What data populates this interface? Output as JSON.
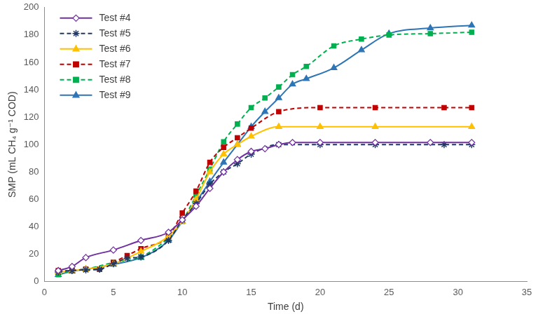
{
  "chart_data": {
    "type": "line",
    "x_label": "Time (d)",
    "y_label": "SMP (mL CH₄ g⁻¹ COD)",
    "xlim": [
      0,
      35
    ],
    "xticks": [
      0,
      5,
      10,
      15,
      20,
      25,
      30,
      35
    ],
    "ylim": [
      0,
      200
    ],
    "yticks": [
      0,
      20,
      40,
      60,
      80,
      100,
      120,
      140,
      160,
      180,
      200
    ],
    "grid": false,
    "legend": "upper left",
    "series": [
      {
        "name": "Test #4",
        "color": "#7030a0",
        "marker": "diamond_open",
        "line_style": "solid",
        "x": [
          1,
          2,
          3,
          5,
          7,
          9,
          10,
          11,
          12,
          13,
          14,
          15,
          16,
          17,
          18,
          20,
          24,
          28,
          31
        ],
        "values": [
          8,
          11,
          17.5,
          23,
          30,
          36,
          45,
          55,
          68,
          80,
          89,
          95,
          97,
          100,
          101.5,
          101.5,
          101.5,
          101.5,
          101.5
        ]
      },
      {
        "name": "Test #5",
        "color": "#1f3864",
        "marker": "asterisk",
        "line_style": "dashed",
        "x": [
          1,
          2,
          3,
          4,
          5,
          6,
          7,
          9,
          10,
          11,
          12,
          13,
          14,
          15,
          17,
          20,
          24,
          29,
          31
        ],
        "values": [
          7,
          8,
          8.5,
          9,
          13,
          17,
          18,
          30,
          45,
          57,
          71,
          80,
          86,
          93,
          100,
          100,
          100,
          100,
          100
        ]
      },
      {
        "name": "Test #6",
        "color": "#ffc000",
        "marker": "triangle",
        "line_style": "solid",
        "x": [
          1,
          2,
          3,
          5,
          7,
          9,
          10,
          11,
          12,
          13,
          14,
          15,
          17,
          20,
          24,
          31
        ],
        "values": [
          7,
          8,
          9,
          13,
          22,
          33,
          44,
          60,
          80,
          93,
          100,
          106,
          113,
          113,
          113,
          113
        ]
      },
      {
        "name": "Test #7",
        "color": "#c00000",
        "marker": "square",
        "line_style": "dashed",
        "x": [
          1,
          2,
          3,
          4,
          5,
          6,
          7,
          9,
          10,
          11,
          12,
          13,
          14,
          15,
          17,
          20,
          24,
          29,
          31
        ],
        "values": [
          8,
          8,
          9,
          9,
          14,
          19,
          24,
          33,
          50,
          66,
          87,
          98,
          105,
          112,
          124,
          127,
          127,
          127,
          127
        ]
      },
      {
        "name": "Test #8",
        "color": "#00b050",
        "marker": "square",
        "line_style": "dashed",
        "x": [
          1,
          2,
          3,
          5,
          7,
          9,
          10,
          11,
          12,
          13,
          14,
          15,
          16,
          17,
          18,
          19,
          21,
          23,
          25,
          28,
          31
        ],
        "values": [
          5,
          8,
          9,
          14,
          18,
          32,
          44,
          63,
          82,
          102,
          115,
          127,
          134,
          142,
          151,
          157,
          172,
          177,
          180,
          181,
          182
        ]
      },
      {
        "name": "Test #9",
        "color": "#2e75b6",
        "marker": "triangle",
        "line_style": "solid",
        "x": [
          1,
          2,
          3,
          5,
          7,
          9,
          10,
          11,
          12,
          13,
          14,
          15,
          16,
          17,
          18,
          19,
          21,
          23,
          25,
          28,
          31
        ],
        "values": [
          5,
          7.5,
          9,
          12.5,
          17.5,
          30,
          44,
          58,
          73,
          87,
          100,
          113,
          124,
          134,
          144,
          148,
          156,
          169,
          181,
          185,
          187
        ]
      }
    ]
  }
}
